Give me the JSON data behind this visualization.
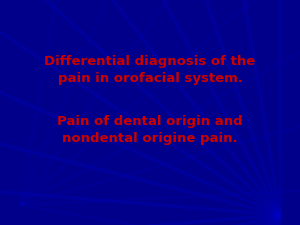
{
  "background_color": "#00008b",
  "background_color_dark": "#000066",
  "line1": "Differential diagnosis of the",
  "line2": "pain in orofacial system.",
  "line3": "Pain of dental origin and",
  "line4": "nondental origine pain.",
  "text_color": "#cc0000",
  "font_size_main": 9.5,
  "font_weight": "bold",
  "font_family": "DejaVu Sans",
  "ray_color": "#0000cc",
  "ray_angles": [
    20,
    40,
    60,
    80,
    100,
    120,
    140,
    160
  ],
  "ray_alpha": 0.25
}
